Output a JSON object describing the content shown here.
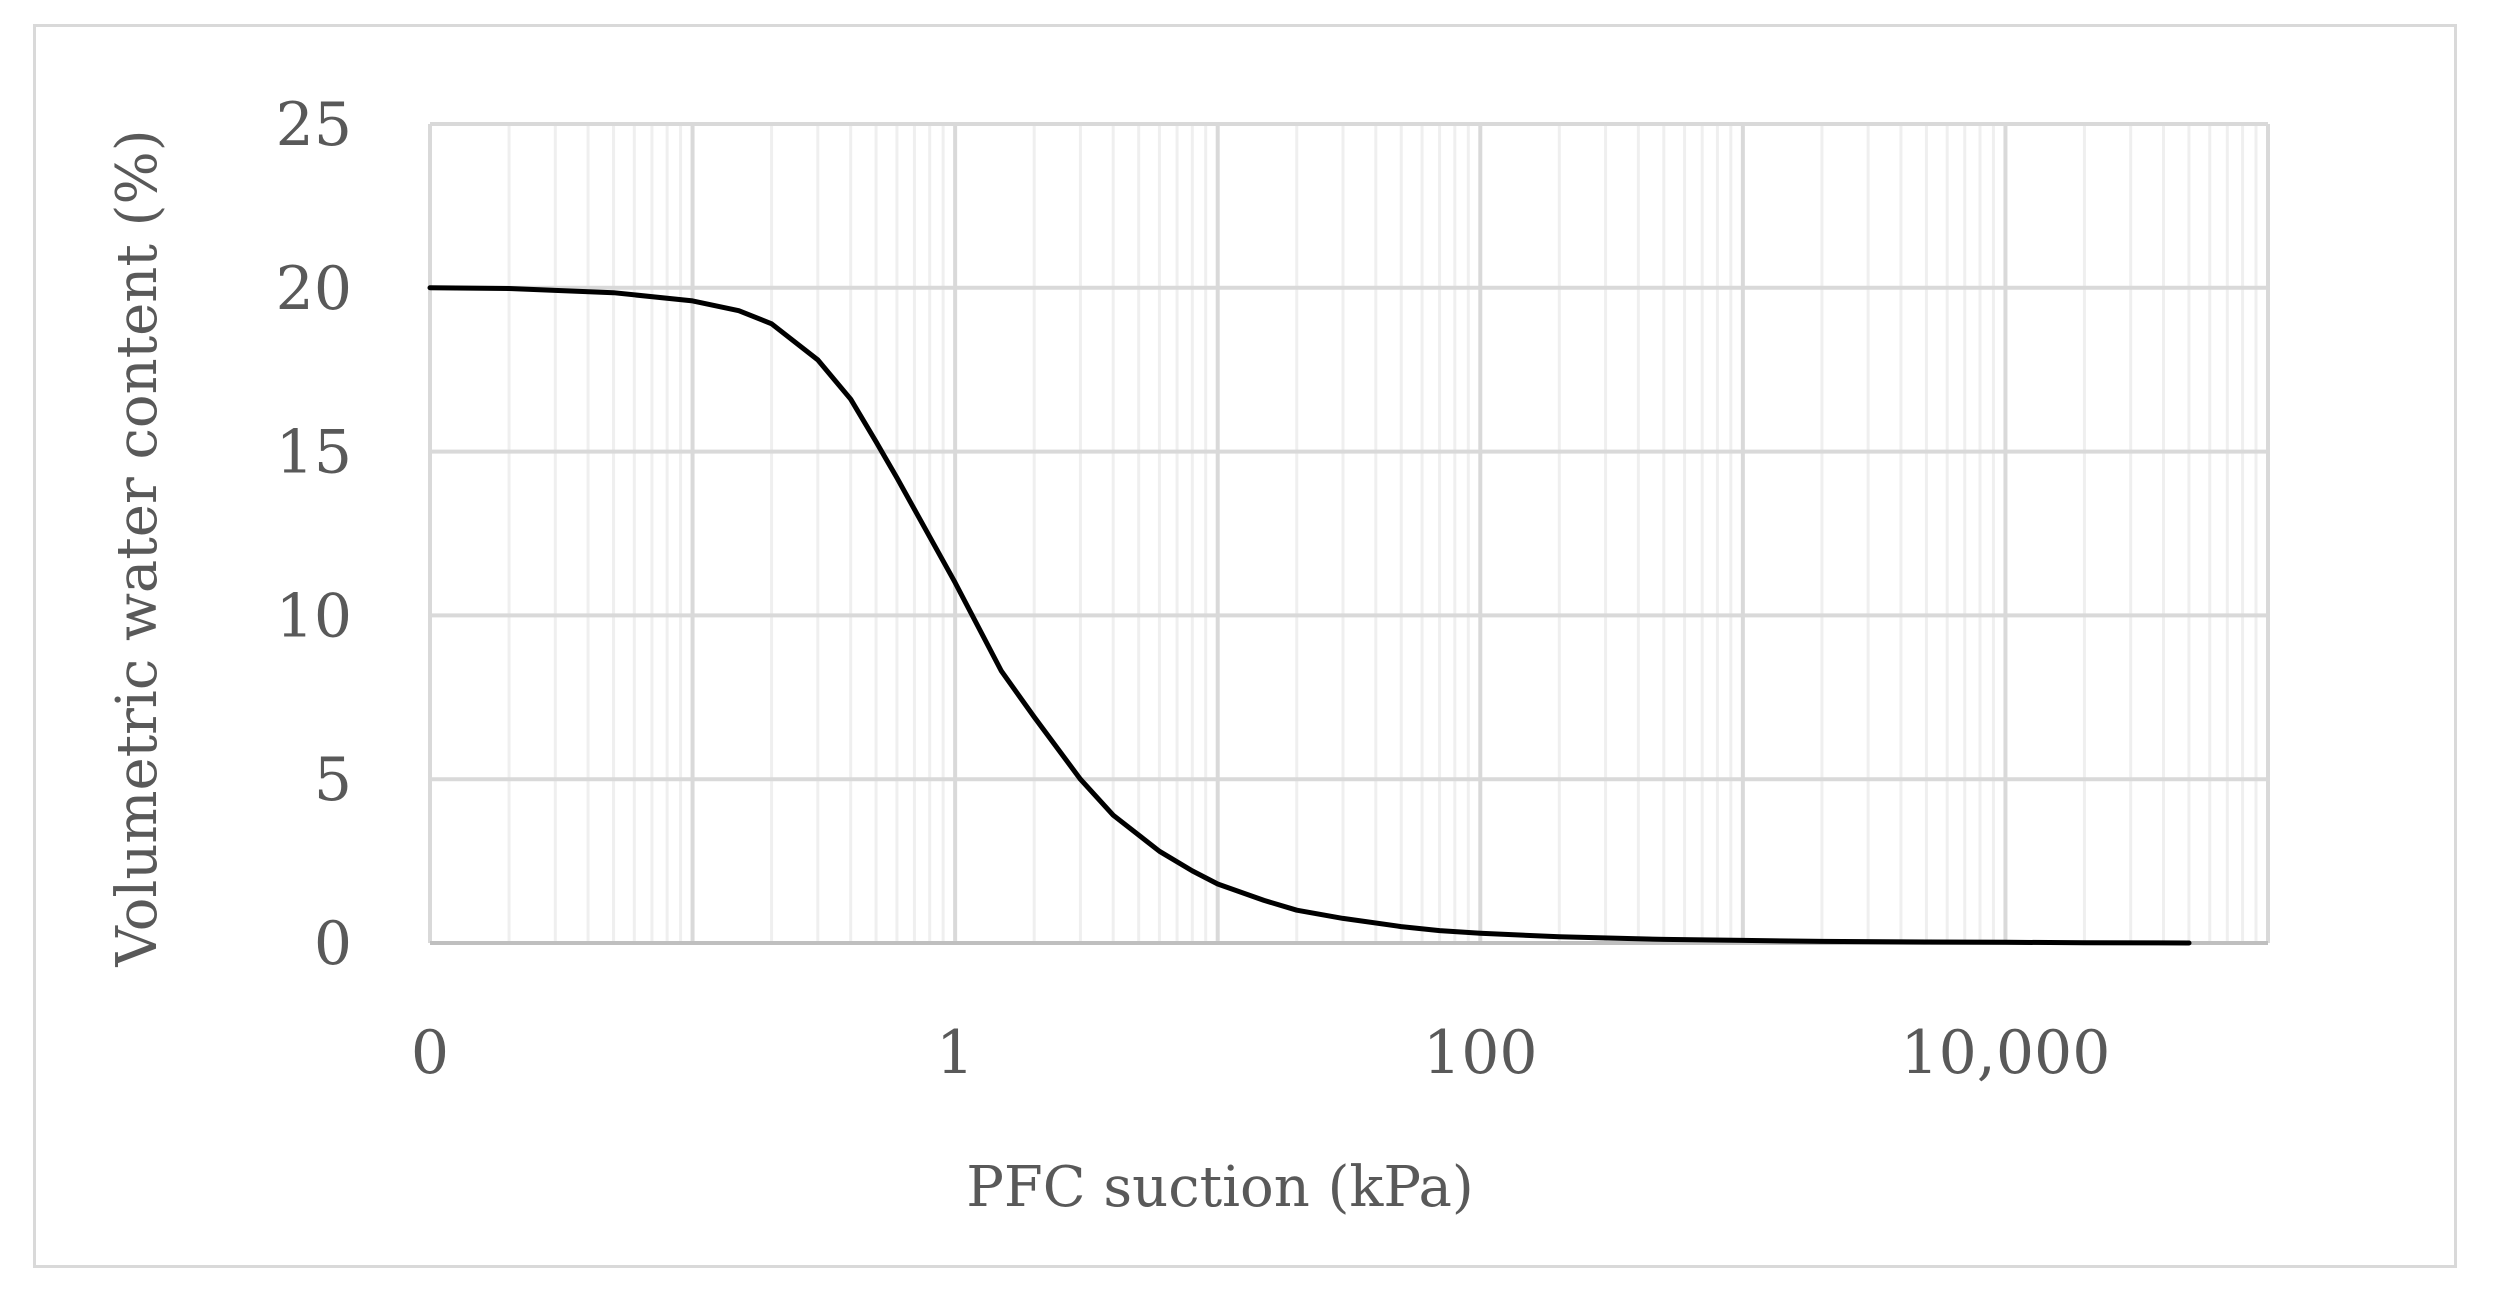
{
  "chart_data": {
    "type": "line",
    "title": "",
    "xlabel": "PFC suction  (kPa)",
    "ylabel": "Volumetric water content (%)",
    "x_scale": "log",
    "xlim": [
      0.01,
      100000
    ],
    "ylim": [
      0,
      25
    ],
    "x_tick_values": [
      0.01,
      1,
      100,
      10000
    ],
    "x_tick_labels": [
      "0",
      "1",
      "100",
      "10,000"
    ],
    "y_ticks": [
      0,
      5,
      10,
      15,
      20,
      25
    ],
    "y_tick_labels": [
      "0",
      "5",
      "10",
      "15",
      "20",
      "25"
    ],
    "grid": true,
    "legend": "none",
    "line_color": "#000000",
    "grid_color": "#d9d9d9",
    "series": [
      {
        "x": [
          0.01,
          0.02,
          0.05,
          0.1,
          0.15,
          0.2,
          0.3,
          0.4,
          0.5,
          0.6,
          0.8,
          1,
          1.5,
          2,
          3,
          4,
          6,
          8,
          10,
          15,
          20,
          30,
          50,
          70,
          100,
          200,
          500,
          1000,
          2000,
          5000,
          10000,
          20000,
          50000
        ],
        "y": [
          20.0,
          19.98,
          19.85,
          19.6,
          19.3,
          18.9,
          17.8,
          16.6,
          15.3,
          14.2,
          12.4,
          11.0,
          8.3,
          6.9,
          5.0,
          3.9,
          2.8,
          2.2,
          1.8,
          1.3,
          1.0,
          0.75,
          0.5,
          0.38,
          0.3,
          0.19,
          0.11,
          0.08,
          0.05,
          0.03,
          0.02,
          0.01,
          0.0
        ]
      }
    ]
  }
}
